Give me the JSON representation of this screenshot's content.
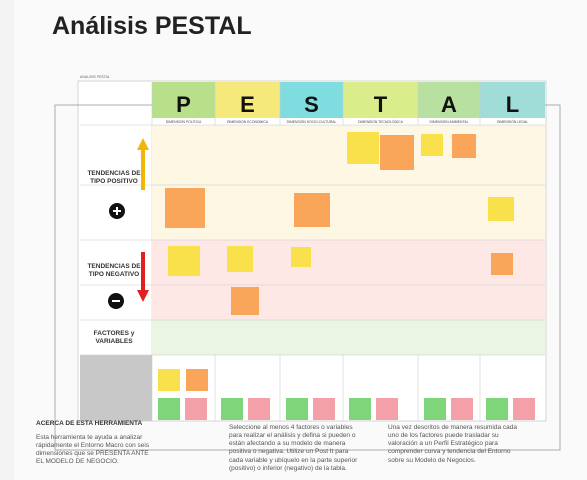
{
  "header": {
    "title": "Análisis PESTAL",
    "board_label": "ANALISIS PESTAL"
  },
  "columns": [
    {
      "letter": "P",
      "name": "DIMENSIÓN POLÍTICA"
    },
    {
      "letter": "E",
      "name": "DIMENSIÓN ECONÓMICA"
    },
    {
      "letter": "S",
      "name": "DIMENSIÓN SOCIO-CULTURAL"
    },
    {
      "letter": "T",
      "name": "DIMENSIÓN TECNOLÓGICA"
    },
    {
      "letter": "A",
      "name": "DIMENSIÓN AMBIENTAL"
    },
    {
      "letter": "L",
      "name": "DIMENSIÓN LEGAL"
    }
  ],
  "rows": {
    "positive": "TENDENCIAS DE TIPO POSITIVO",
    "negative": "TENDENCIAS DE TIPO NEGATIVO",
    "factors": "FACTORES y VARIABLES"
  },
  "footer": {
    "about_title": "ACERCA DE ESTA HERRAMIENTA",
    "about_text": "Esta herramienta te ayuda a analizar rápidamente el Entorno Macro con seis dimensiones que se PRESENTA ANTE EL MODELO DE NEGOCIO.",
    "instructions": "Seleccione al menos 4 factores o variables para realizar el análisis y defina si pueden o están afectando a su modelo de manera positiva o negativa. Utilize un Post It para cada variable y ubíquelo en la parte superior (positivo) o inferior (negativo) de la tabla.",
    "next_step": "Una vez descritos de manera resumida cada uno de los factores puede trasladar su valoración a un Perfil Estratégico para comprender curva y tendencia del Entorno sobre su Modelo de Negocios."
  }
}
